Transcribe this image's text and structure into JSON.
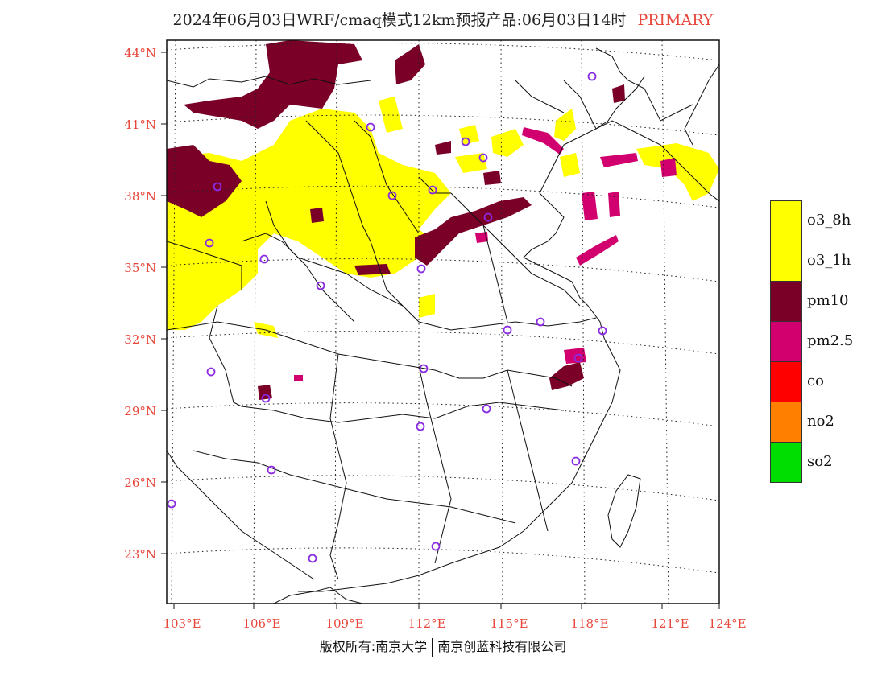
{
  "title": {
    "main": "2024年06月03日WRF/cmaq模式12km预报产品:06月03日14时",
    "tag": "PRIMARY"
  },
  "colors": {
    "title_tag": "#e8473c",
    "axis_label": "#e8473c",
    "o3_8h": "#ffff00",
    "o3_1h": "#ffff00",
    "pm10": "#7a0028",
    "pm2_5": "#d2006e",
    "co": "#ff0000",
    "no2": "#ff8000",
    "so2": "#00dd00",
    "station_marker": "#8a2be2"
  },
  "axes": {
    "latitude_labels": [
      "44°N",
      "41°N",
      "38°N",
      "35°N",
      "32°N",
      "29°N",
      "26°N",
      "23°N"
    ],
    "longitude_labels": [
      "103°E",
      "106°E",
      "109°E",
      "112°E",
      "115°E",
      "118°E",
      "121°E",
      "124°E"
    ]
  },
  "legend": [
    {
      "label": "o3_8h",
      "color": "#ffff00"
    },
    {
      "label": "o3_1h",
      "color": "#ffff00"
    },
    {
      "label": "pm10",
      "color": "#7a0028"
    },
    {
      "label": "pm2.5",
      "color": "#d2006e"
    },
    {
      "label": "co",
      "color": "#ff0000"
    },
    {
      "label": "no2",
      "color": "#ff8000"
    },
    {
      "label": "so2",
      "color": "#00dd00"
    }
  ],
  "footer": {
    "left": "版权所有:南京大学",
    "right": "南京创蓝科技有限公司"
  }
}
